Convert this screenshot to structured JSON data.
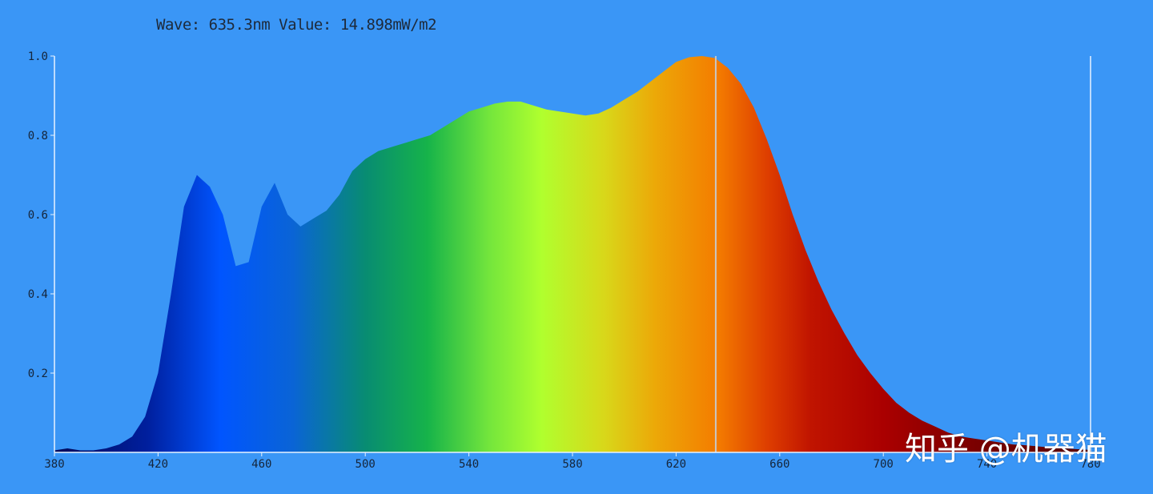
{
  "readout": {
    "text": "Wave: 635.3nm Value: 14.898mW/m2",
    "wave_nm": 635.3
  },
  "watermark": {
    "text": "知乎 @机器猫"
  },
  "colors": {
    "background": "#3a96f6",
    "axis": "#e8f2ff",
    "cursor": "#c8c8c8"
  },
  "chart_data": {
    "type": "area",
    "title": "",
    "xlabel": "",
    "ylabel": "",
    "xlim": [
      380,
      780
    ],
    "ylim": [
      0,
      1.0
    ],
    "grid": false,
    "x_ticks": [
      "380",
      "420",
      "460",
      "500",
      "540",
      "580",
      "620",
      "660",
      "700",
      "740",
      "780"
    ],
    "y_ticks": [
      "0.2",
      "0.4",
      "0.6",
      "0.8",
      "1.0"
    ],
    "fill": "visible spectrum gradient by wavelength",
    "series": [
      {
        "x": [
          380,
          385,
          390,
          395,
          400,
          405,
          410,
          415,
          420,
          425,
          430,
          435,
          440,
          445,
          450,
          455,
          460,
          465,
          470,
          475,
          480,
          485,
          490,
          495,
          500,
          505,
          510,
          515,
          520,
          525,
          530,
          535,
          540,
          545,
          550,
          555,
          560,
          565,
          570,
          575,
          580,
          585,
          590,
          595,
          600,
          605,
          610,
          615,
          620,
          625,
          630,
          635,
          640,
          645,
          650,
          655,
          660,
          665,
          670,
          675,
          680,
          685,
          690,
          695,
          700,
          705,
          710,
          715,
          720,
          725,
          730,
          735,
          740,
          745,
          750,
          755,
          760,
          765,
          770,
          775,
          780
        ],
        "y": [
          0.005,
          0.01,
          0.005,
          0.005,
          0.01,
          0.02,
          0.04,
          0.09,
          0.2,
          0.4,
          0.62,
          0.7,
          0.67,
          0.6,
          0.47,
          0.48,
          0.62,
          0.68,
          0.6,
          0.57,
          0.59,
          0.61,
          0.65,
          0.71,
          0.74,
          0.76,
          0.77,
          0.78,
          0.79,
          0.8,
          0.82,
          0.84,
          0.86,
          0.87,
          0.88,
          0.885,
          0.885,
          0.875,
          0.865,
          0.86,
          0.855,
          0.85,
          0.855,
          0.87,
          0.89,
          0.91,
          0.935,
          0.96,
          0.985,
          0.997,
          1.0,
          0.995,
          0.97,
          0.93,
          0.87,
          0.79,
          0.7,
          0.6,
          0.51,
          0.43,
          0.36,
          0.3,
          0.245,
          0.2,
          0.16,
          0.125,
          0.1,
          0.08,
          0.065,
          0.05,
          0.04,
          0.035,
          0.03,
          0.025,
          0.02,
          0.018,
          0.015,
          0.012,
          0.01,
          0.008,
          0.006
        ]
      }
    ],
    "cursor_x": 635.3
  }
}
